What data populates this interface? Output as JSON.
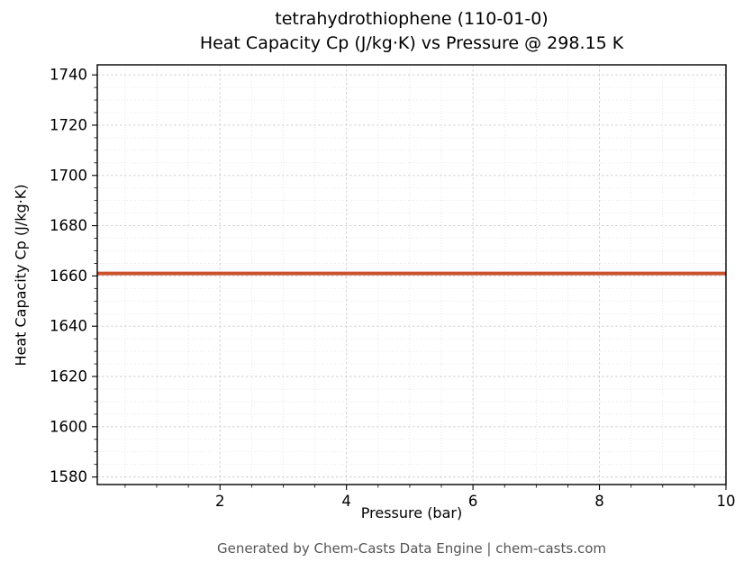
{
  "chart_data": {
    "type": "line",
    "title_lines": [
      "tetrahydrothiophene (110-01-0)",
      "Heat Capacity Cp (J/kg·K) vs Pressure @ 298.15 K"
    ],
    "xlabel": "Pressure (bar)",
    "ylabel": "Heat Capacity Cp (J/kg·K)",
    "xlim": [
      0.06,
      10
    ],
    "ylim": [
      1577,
      1744
    ],
    "xticks": [
      2,
      4,
      6,
      8,
      10
    ],
    "yticks": [
      1580,
      1600,
      1620,
      1640,
      1660,
      1680,
      1700,
      1720,
      1740
    ],
    "x_minor_step": 0.5,
    "y_minor_step": 5,
    "grid": true,
    "legend": false,
    "series": [
      {
        "name": "Heat Capacity Cp",
        "x": [
          0.06,
          10
        ],
        "y": [
          1661,
          1661
        ],
        "color": "#c9512b",
        "line_width": 4
      }
    ]
  },
  "footer": "Generated by Chem-Casts Data Engine | chem-casts.com"
}
